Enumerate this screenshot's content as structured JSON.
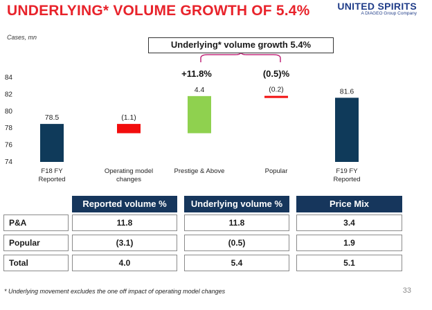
{
  "title": "UNDERLYING* VOLUME GROWTH OF 5.4%",
  "logo": {
    "main": "UNITED SPIRITS",
    "sub": "A DIAGEO Group Company",
    "color": "#1f3c88"
  },
  "units_label": "Cases, mn",
  "callout": "Underlying* volume growth 5.4%",
  "growth_labels": {
    "prestige": "+11.8%",
    "popular": "(0.5)%"
  },
  "colors": {
    "title": "#e8232b",
    "base_bar": "#0f3a5a",
    "negative_bar": "#f20d0d",
    "positive_bar": "#8fd14f",
    "table_header": "#16365c"
  },
  "chart_data": {
    "type": "bar",
    "subtype": "waterfall",
    "categories": [
      "F18 FY\nReported",
      "Operating model\nchanges",
      "Prestige & Above",
      "Popular",
      "F19 FY\nReported"
    ],
    "values": [
      78.5,
      -1.1,
      4.4,
      -0.2,
      81.6
    ],
    "bar_kinds": [
      "total",
      "delta",
      "delta",
      "delta",
      "total"
    ],
    "value_labels": [
      "78.5",
      "(1.1)",
      "4.4",
      "(0.2)",
      "81.6"
    ],
    "ylim": [
      74,
      84
    ],
    "yticks": [
      "74",
      "76",
      "78",
      "80",
      "82",
      "84"
    ],
    "ylabel": "Cases, mn",
    "grid": false
  },
  "table": {
    "headers": [
      "Reported volume %",
      "Underlying volume %",
      "Price Mix"
    ],
    "rows": [
      {
        "label": "P&A",
        "values": [
          "11.8",
          "11.8",
          "3.4"
        ]
      },
      {
        "label": "Popular",
        "values": [
          "(3.1)",
          "(0.5)",
          "1.9"
        ]
      },
      {
        "label": "Total",
        "values": [
          "4.0",
          "5.4",
          "5.1"
        ]
      }
    ]
  },
  "footnote": "* Underlying movement excludes the one off impact of operating model changes",
  "page_number": "33"
}
